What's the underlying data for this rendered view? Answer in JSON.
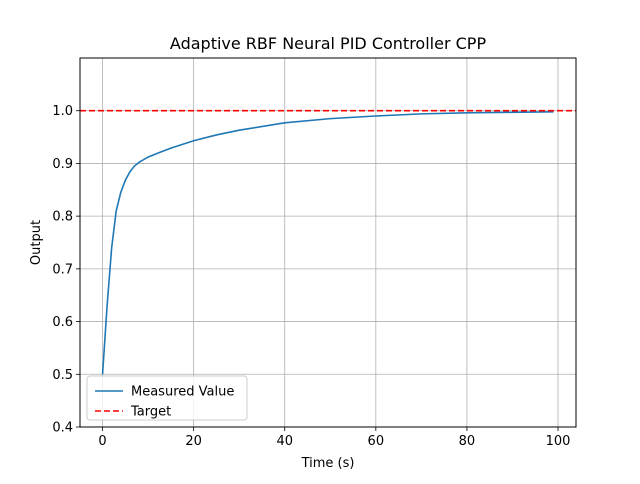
{
  "chart_data": {
    "type": "line",
    "title": "Adaptive RBF Neural PID Controller CPP",
    "xlabel": "Time (s)",
    "ylabel": "Output",
    "xlim": [
      -4.95,
      103.95
    ],
    "ylim": [
      0.4,
      1.1
    ],
    "xticks": [
      0,
      20,
      40,
      60,
      80,
      100
    ],
    "yticks": [
      0.4,
      0.5,
      0.6,
      0.7,
      0.8,
      0.9,
      1.0
    ],
    "xtick_labels": [
      "0",
      "20",
      "40",
      "60",
      "80",
      "100"
    ],
    "ytick_labels": [
      "0.4",
      "0.5",
      "0.6",
      "0.7",
      "0.8",
      "0.9",
      "1.0"
    ],
    "grid": true,
    "legend_position": "lower-left",
    "series": [
      {
        "name": "Measured Value",
        "color": "#1f77b4",
        "style": "solid",
        "x": [
          0,
          1,
          2,
          3,
          4,
          5,
          6,
          7,
          8,
          10,
          12,
          15,
          20,
          25,
          30,
          40,
          50,
          60,
          70,
          80,
          90,
          99
        ],
        "y": [
          0.5,
          0.63,
          0.74,
          0.81,
          0.845,
          0.868,
          0.884,
          0.895,
          0.902,
          0.912,
          0.919,
          0.929,
          0.943,
          0.954,
          0.963,
          0.977,
          0.985,
          0.99,
          0.994,
          0.996,
          0.997,
          0.998
        ]
      },
      {
        "name": "Target",
        "color": "#ff0000",
        "style": "dashed",
        "x": [
          -4.95,
          103.95
        ],
        "y": [
          1.0,
          1.0
        ]
      }
    ]
  }
}
